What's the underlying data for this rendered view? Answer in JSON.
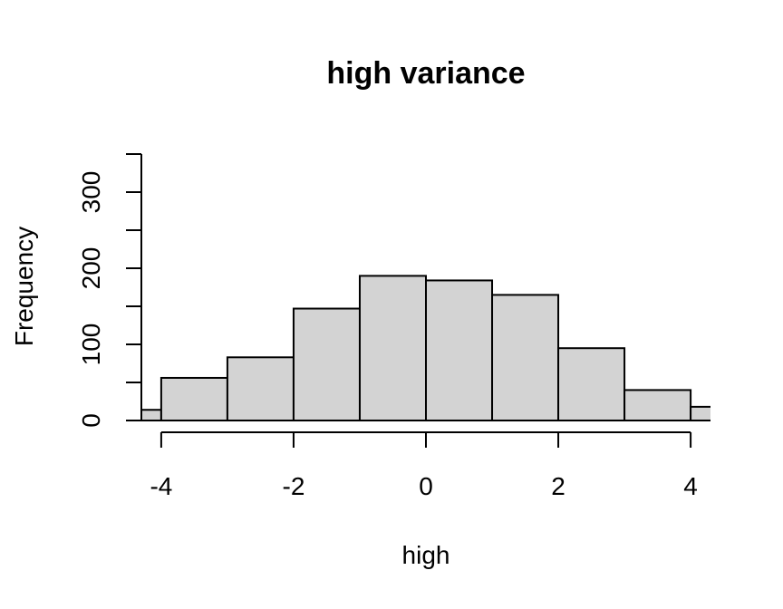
{
  "chart_data": {
    "type": "bar",
    "title": "high variance",
    "xlabel": "high",
    "ylabel": "Frequency",
    "bins": [
      {
        "from": -5,
        "to": -4,
        "count": 14
      },
      {
        "from": -4,
        "to": -3,
        "count": 56
      },
      {
        "from": -3,
        "to": -2,
        "count": 83
      },
      {
        "from": -2,
        "to": -1,
        "count": 147
      },
      {
        "from": -1,
        "to": 0,
        "count": 190
      },
      {
        "from": 0,
        "to": 1,
        "count": 184
      },
      {
        "from": 1,
        "to": 2,
        "count": 165
      },
      {
        "from": 2,
        "to": 3,
        "count": 95
      },
      {
        "from": 3,
        "to": 4,
        "count": 40
      },
      {
        "from": 4,
        "to": 5,
        "count": 18
      }
    ],
    "xlim": [
      -4.3,
      4.3
    ],
    "ylim": [
      0,
      350
    ],
    "x_ticks": [
      -4,
      -2,
      0,
      2,
      4
    ],
    "x_tick_labels": [
      "-4",
      "-2",
      "0",
      "2",
      "4"
    ],
    "y_ticks": [
      0,
      50,
      100,
      150,
      200,
      250,
      300,
      350
    ],
    "y_tick_labels": [
      "0",
      "",
      "100",
      "",
      "200",
      "",
      "300",
      ""
    ],
    "bar_color": "#d3d3d3",
    "grid": false
  }
}
